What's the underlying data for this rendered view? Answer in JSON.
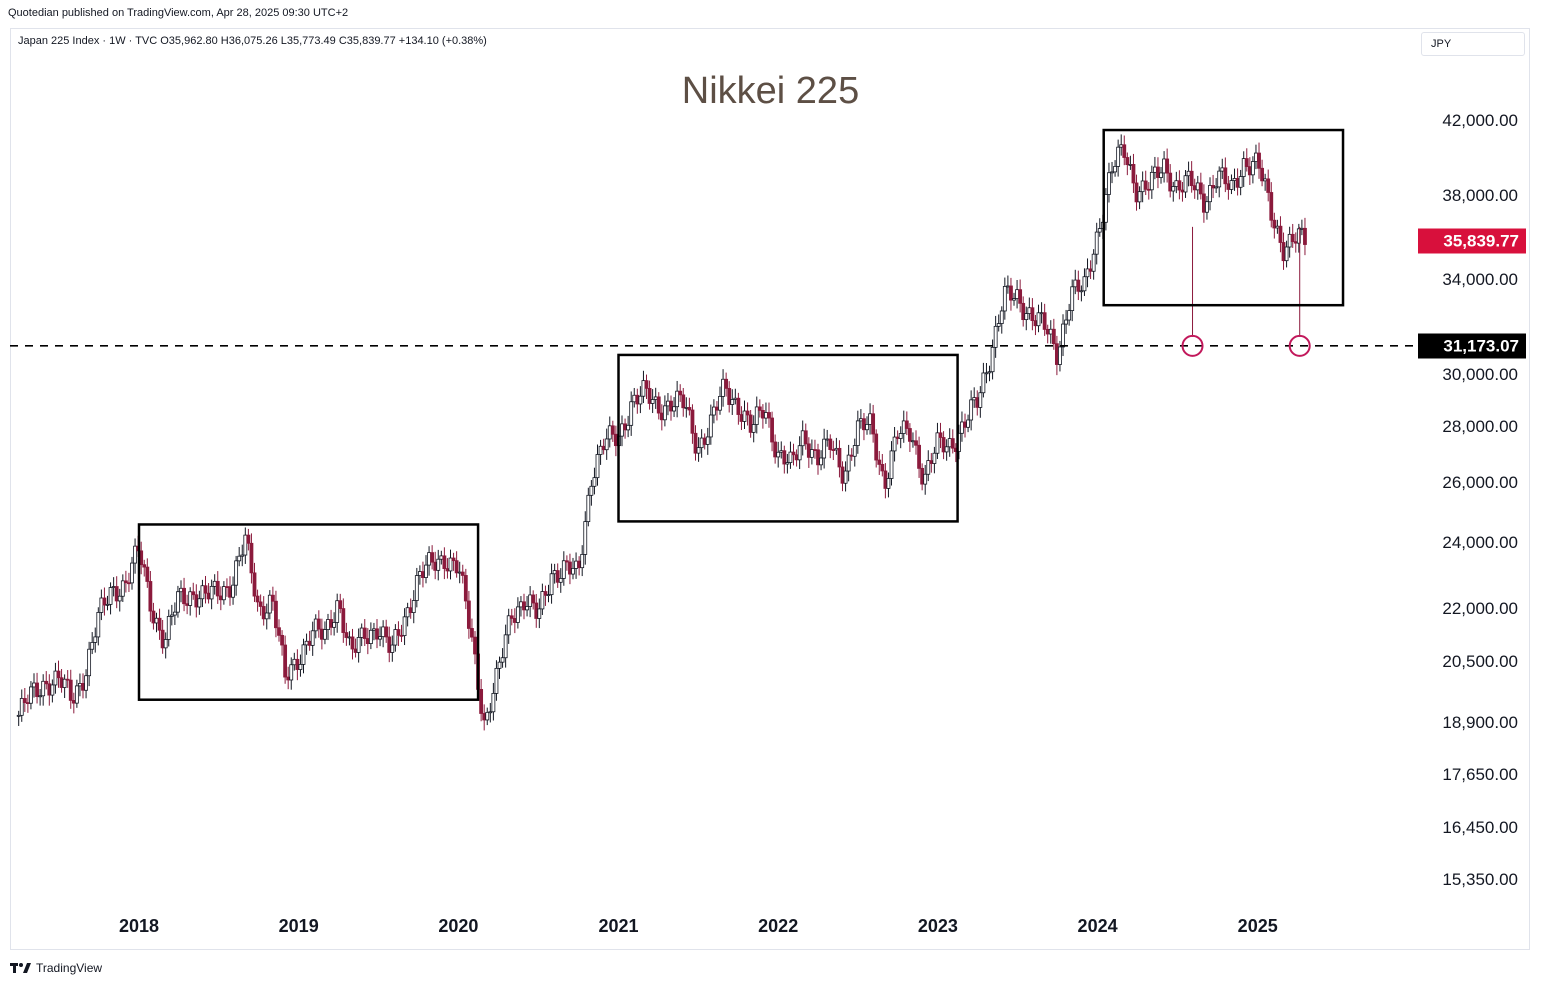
{
  "header": {
    "credit": "Quotedian published on TradingView.com, Apr 28, 2025 09:30 UTC+2"
  },
  "legend": {
    "text": "Japan 225 Index · 1W · TVC  O35,962.80  H36,075.26  L35,773.49  C35,839.77  +134.10 (+0.38%)"
  },
  "currency": "JPY",
  "footer": {
    "brand": "TradingView"
  },
  "colors": {
    "up": "#131722",
    "down": "#8b1a3c",
    "last_price_tag": "#d8103c",
    "level_tag": "#000000",
    "title": "#5d4f45",
    "marker": "#c2185b"
  },
  "chart_data": {
    "type": "candlestick",
    "title": "Nikkei 225",
    "interval": "1W",
    "scale": "log",
    "y_ticks": [
      "42,000.00",
      "38,000.00",
      "34,000.00",
      "30,000.00",
      "28,000.00",
      "26,000.00",
      "24,000.00",
      "22,000.00",
      "20,500.00",
      "18,900.00",
      "17,650.00",
      "16,450.00",
      "15,350.00"
    ],
    "x_ticks": [
      "2018",
      "2019",
      "2020",
      "2021",
      "2022",
      "2023",
      "2024",
      "2025"
    ],
    "last_price": {
      "value": 35839.77,
      "label": "35,839.77"
    },
    "support_level": {
      "value": 31173.07,
      "label": "31,173.07",
      "style": "dashed"
    },
    "markers": [
      {
        "date": "2024-08-05"
      },
      {
        "date": "2025-04-07"
      }
    ],
    "ranges": [
      {
        "from": "2018-01-01",
        "to": "2020-02-15",
        "high": 24600,
        "low": 19500
      },
      {
        "from": "2021-01-01",
        "to": "2023-02-15",
        "high": 30800,
        "low": 24700
      },
      {
        "from": "2024-01-15",
        "to": "2025-07-15",
        "high": 41500,
        "low": 32900
      }
    ],
    "series": [
      {
        "date": "2017-04-01",
        "close": 19100
      },
      {
        "date": "2017-05-01",
        "close": 19600
      },
      {
        "date": "2017-06-01",
        "close": 20000
      },
      {
        "date": "2017-07-01",
        "close": 20000
      },
      {
        "date": "2017-08-01",
        "close": 19500
      },
      {
        "date": "2017-09-01",
        "close": 20300
      },
      {
        "date": "2017-10-01",
        "close": 21700
      },
      {
        "date": "2017-11-01",
        "close": 22600
      },
      {
        "date": "2017-12-01",
        "close": 22750
      },
      {
        "date": "2018-01-01",
        "close": 23700
      },
      {
        "date": "2018-02-01",
        "close": 22000
      },
      {
        "date": "2018-03-01",
        "close": 21000
      },
      {
        "date": "2018-04-01",
        "close": 22300
      },
      {
        "date": "2018-05-01",
        "close": 22500
      },
      {
        "date": "2018-06-01",
        "close": 22300
      },
      {
        "date": "2018-07-01",
        "close": 22500
      },
      {
        "date": "2018-08-01",
        "close": 22800
      },
      {
        "date": "2018-09-01",
        "close": 24000
      },
      {
        "date": "2018-10-01",
        "close": 22000
      },
      {
        "date": "2018-11-01",
        "close": 22300
      },
      {
        "date": "2018-12-01",
        "close": 20000
      },
      {
        "date": "2019-01-01",
        "close": 20700
      },
      {
        "date": "2019-02-01",
        "close": 21300
      },
      {
        "date": "2019-03-01",
        "close": 21200
      },
      {
        "date": "2019-04-01",
        "close": 22300
      },
      {
        "date": "2019-05-01",
        "close": 20600
      },
      {
        "date": "2019-06-01",
        "close": 21300
      },
      {
        "date": "2019-07-01",
        "close": 21500
      },
      {
        "date": "2019-08-01",
        "close": 20700
      },
      {
        "date": "2019-09-01",
        "close": 21800
      },
      {
        "date": "2019-10-01",
        "close": 22900
      },
      {
        "date": "2019-11-01",
        "close": 23300
      },
      {
        "date": "2019-12-01",
        "close": 23600
      },
      {
        "date": "2020-01-01",
        "close": 23200
      },
      {
        "date": "2020-02-01",
        "close": 21100
      },
      {
        "date": "2020-03-01",
        "close": 18900
      },
      {
        "date": "2020-04-01",
        "close": 20100
      },
      {
        "date": "2020-05-01",
        "close": 21900
      },
      {
        "date": "2020-06-01",
        "close": 22300
      },
      {
        "date": "2020-07-01",
        "close": 21700
      },
      {
        "date": "2020-08-01",
        "close": 23100
      },
      {
        "date": "2020-09-01",
        "close": 23200
      },
      {
        "date": "2020-10-01",
        "close": 22950
      },
      {
        "date": "2020-11-01",
        "close": 26400
      },
      {
        "date": "2020-12-01",
        "close": 27400
      },
      {
        "date": "2021-01-01",
        "close": 27600
      },
      {
        "date": "2021-02-01",
        "close": 29000
      },
      {
        "date": "2021-03-01",
        "close": 29200
      },
      {
        "date": "2021-04-01",
        "close": 28800
      },
      {
        "date": "2021-05-01",
        "close": 28900
      },
      {
        "date": "2021-06-01",
        "close": 28800
      },
      {
        "date": "2021-07-01",
        "close": 27300
      },
      {
        "date": "2021-08-01",
        "close": 28100
      },
      {
        "date": "2021-09-01",
        "close": 29500
      },
      {
        "date": "2021-10-01",
        "close": 28900
      },
      {
        "date": "2021-11-01",
        "close": 27800
      },
      {
        "date": "2021-12-01",
        "close": 28800
      },
      {
        "date": "2022-01-01",
        "close": 27000
      },
      {
        "date": "2022-02-01",
        "close": 26500
      },
      {
        "date": "2022-03-01",
        "close": 27800
      },
      {
        "date": "2022-04-01",
        "close": 26800
      },
      {
        "date": "2022-05-01",
        "close": 27300
      },
      {
        "date": "2022-06-01",
        "close": 26400
      },
      {
        "date": "2022-07-01",
        "close": 27800
      },
      {
        "date": "2022-08-01",
        "close": 28100
      },
      {
        "date": "2022-09-01",
        "close": 26000
      },
      {
        "date": "2022-10-01",
        "close": 27600
      },
      {
        "date": "2022-11-01",
        "close": 27900
      },
      {
        "date": "2022-12-01",
        "close": 26100
      },
      {
        "date": "2023-01-01",
        "close": 27300
      },
      {
        "date": "2023-02-01",
        "close": 27450
      },
      {
        "date": "2023-03-01",
        "close": 28000
      },
      {
        "date": "2023-04-01",
        "close": 28900
      },
      {
        "date": "2023-05-01",
        "close": 30900
      },
      {
        "date": "2023-06-01",
        "close": 33200
      },
      {
        "date": "2023-07-01",
        "close": 33200
      },
      {
        "date": "2023-08-01",
        "close": 32600
      },
      {
        "date": "2023-09-01",
        "close": 31900
      },
      {
        "date": "2023-10-01",
        "close": 30900
      },
      {
        "date": "2023-11-01",
        "close": 33500
      },
      {
        "date": "2023-12-01",
        "close": 33500
      },
      {
        "date": "2024-01-01",
        "close": 36300
      },
      {
        "date": "2024-02-01",
        "close": 39200
      },
      {
        "date": "2024-03-01",
        "close": 40400
      },
      {
        "date": "2024-04-01",
        "close": 38400
      },
      {
        "date": "2024-05-01",
        "close": 38500
      },
      {
        "date": "2024-06-01",
        "close": 39600
      },
      {
        "date": "2024-07-01",
        "close": 38500
      },
      {
        "date": "2024-08-01",
        "close": 38600
      },
      {
        "date": "2024-09-01",
        "close": 37900
      },
      {
        "date": "2024-10-01",
        "close": 39100
      },
      {
        "date": "2024-11-01",
        "close": 38200
      },
      {
        "date": "2024-12-01",
        "close": 39900
      },
      {
        "date": "2025-01-01",
        "close": 39600
      },
      {
        "date": "2025-02-01",
        "close": 37200
      },
      {
        "date": "2025-03-01",
        "close": 35600
      },
      {
        "date": "2025-04-01",
        "close": 35840
      }
    ]
  }
}
